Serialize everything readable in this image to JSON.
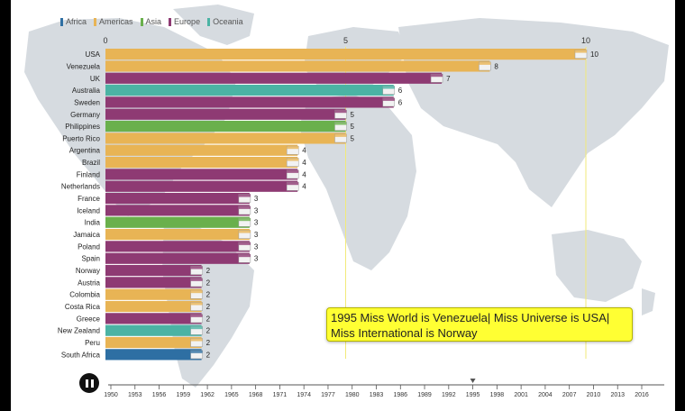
{
  "legend": [
    {
      "label": "Africa",
      "color": "#2e6fa3"
    },
    {
      "label": "Americas",
      "color": "#e8b455"
    },
    {
      "label": "Asia",
      "color": "#6ab04c"
    },
    {
      "label": "Europe",
      "color": "#8e3a73"
    },
    {
      "label": "Oceania",
      "color": "#4bb3a4"
    }
  ],
  "caption": "1995 Miss World is Venezuela| Miss Universe is USA| Miss International is Norway",
  "timeline": {
    "ticks": [
      "1950",
      "1953",
      "1956",
      "1959",
      "1962",
      "1965",
      "1968",
      "1971",
      "1974",
      "1977",
      "1980",
      "1983",
      "1986",
      "1989",
      "1992",
      "1995",
      "1998",
      "2001",
      "2004",
      "2007",
      "2010",
      "2013",
      "2016"
    ],
    "current": "1995"
  },
  "chart_data": {
    "type": "bar",
    "orientation": "horizontal",
    "xlim": [
      0,
      11
    ],
    "xticks": [
      0,
      5,
      10
    ],
    "categories": [
      "USA",
      "Venezuela",
      "UK",
      "Australia",
      "Sweden",
      "Germany",
      "Philippines",
      "Puerto Rico",
      "Argentina",
      "Brazil",
      "Finland",
      "Netherlands",
      "France",
      "Iceland",
      "India",
      "Jamaica",
      "Poland",
      "Spain",
      "Norway",
      "Austria",
      "Colombia",
      "Costa Rica",
      "Greece",
      "New Zealand",
      "Peru",
      "South Africa"
    ],
    "values": [
      10,
      8,
      7,
      6,
      6,
      5,
      5,
      5,
      4,
      4,
      4,
      4,
      3,
      3,
      3,
      3,
      3,
      3,
      2,
      2,
      2,
      2,
      2,
      2,
      2,
      2
    ],
    "regions": [
      "Americas",
      "Americas",
      "Europe",
      "Oceania",
      "Europe",
      "Europe",
      "Asia",
      "Americas",
      "Americas",
      "Americas",
      "Europe",
      "Europe",
      "Europe",
      "Europe",
      "Asia",
      "Americas",
      "Europe",
      "Europe",
      "Europe",
      "Europe",
      "Americas",
      "Americas",
      "Europe",
      "Oceania",
      "Americas",
      "Africa"
    ]
  }
}
